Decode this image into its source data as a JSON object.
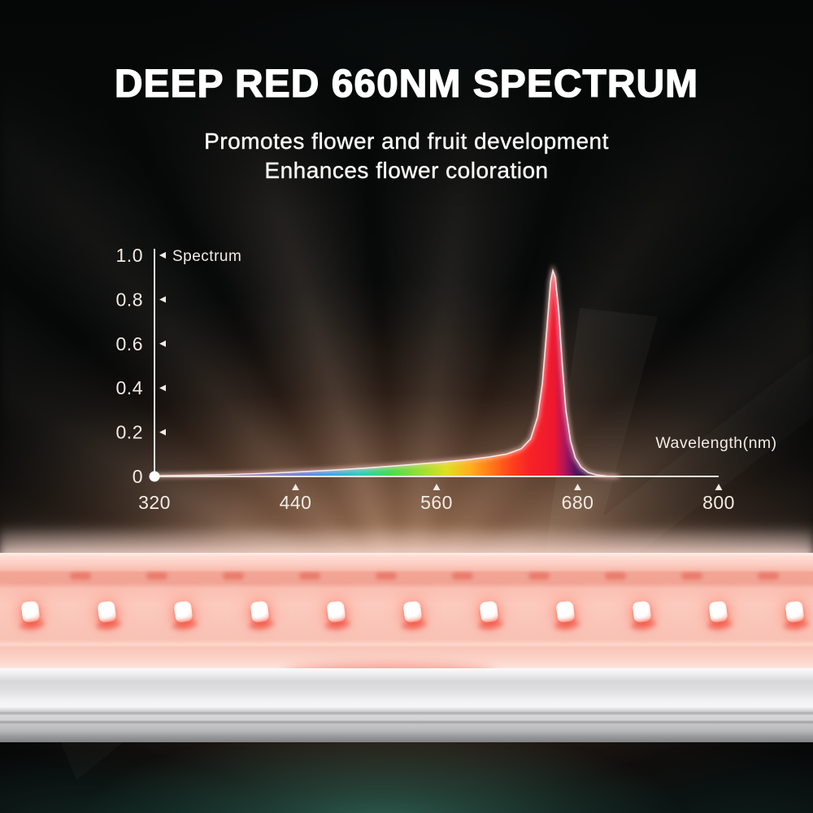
{
  "header": {
    "title": "DEEP RED 660NM SPECTRUM",
    "subtitle_line1": "Promotes flower and fruit development",
    "subtitle_line2": "Enhances flower coloration"
  },
  "chart_data": {
    "type": "area",
    "title": "",
    "xlabel": "Wavelength(nm)",
    "ylabel": "Spectrum",
    "xlim": [
      320,
      800
    ],
    "ylim": [
      0,
      1.0
    ],
    "grid": false,
    "legend_position": "none",
    "x_ticks": [
      320,
      440,
      560,
      680,
      800
    ],
    "y_ticks": [
      0,
      0.2,
      0.4,
      0.6,
      0.8,
      1.0
    ],
    "y_tick_labels": [
      "0",
      "0.2",
      "0.4",
      "0.6",
      "0.8",
      "1.0"
    ],
    "peak": {
      "wavelength_nm": 660,
      "intensity": 0.93
    },
    "series": [
      {
        "name": "Spectrum",
        "points": [
          [
            320,
            0.003
          ],
          [
            350,
            0.005
          ],
          [
            380,
            0.008
          ],
          [
            410,
            0.013
          ],
          [
            440,
            0.02
          ],
          [
            470,
            0.028
          ],
          [
            500,
            0.038
          ],
          [
            530,
            0.05
          ],
          [
            560,
            0.063
          ],
          [
            585,
            0.075
          ],
          [
            605,
            0.088
          ],
          [
            620,
            0.102
          ],
          [
            632,
            0.125
          ],
          [
            640,
            0.17
          ],
          [
            646,
            0.27
          ],
          [
            650,
            0.42
          ],
          [
            654,
            0.68
          ],
          [
            657,
            0.88
          ],
          [
            659,
            0.93
          ],
          [
            661,
            0.9
          ],
          [
            664,
            0.74
          ],
          [
            667,
            0.5
          ],
          [
            670,
            0.3
          ],
          [
            674,
            0.16
          ],
          [
            678,
            0.085
          ],
          [
            683,
            0.042
          ],
          [
            689,
            0.018
          ],
          [
            696,
            0.007
          ],
          [
            705,
            0.002
          ],
          [
            715,
            0.0
          ]
        ]
      }
    ],
    "color_stops": [
      {
        "nm": 320,
        "c": "#8a5ad0",
        "o": 0.0
      },
      {
        "nm": 365,
        "c": "#7a55d2",
        "o": 0.45
      },
      {
        "nm": 405,
        "c": "#5f5ae2",
        "o": 0.7
      },
      {
        "nm": 440,
        "c": "#3e6ee8",
        "o": 0.9
      },
      {
        "nm": 468,
        "c": "#2f9ce8",
        "o": 1.0
      },
      {
        "nm": 494,
        "c": "#2accc0",
        "o": 1.0
      },
      {
        "nm": 520,
        "c": "#44dc50",
        "o": 1.0
      },
      {
        "nm": 546,
        "c": "#96e032",
        "o": 1.0
      },
      {
        "nm": 568,
        "c": "#dfe020",
        "o": 1.0
      },
      {
        "nm": 588,
        "c": "#ffb01e",
        "o": 1.0
      },
      {
        "nm": 606,
        "c": "#ff7a18",
        "o": 1.0
      },
      {
        "nm": 624,
        "c": "#ff401c",
        "o": 1.0
      },
      {
        "nm": 640,
        "c": "#f62226",
        "o": 1.0
      },
      {
        "nm": 660,
        "c": "#ee1830",
        "o": 1.0
      },
      {
        "nm": 669,
        "c": "#b0145c",
        "o": 1.0
      },
      {
        "nm": 678,
        "c": "#55125f",
        "o": 1.0
      },
      {
        "nm": 688,
        "c": "#2e1150",
        "o": 0.75
      },
      {
        "nm": 698,
        "c": "#241040",
        "o": 0.35
      },
      {
        "nm": 710,
        "c": "#241040",
        "o": 0.0
      }
    ]
  },
  "fixture": {
    "led_count": 11,
    "reflection_dot_count": 10,
    "led_color": "#ffffff",
    "led_glow_color": "#ff4f3f",
    "bar_color": "#fccabe",
    "heatsink_color": "#d2d2d4"
  },
  "colors": {
    "accent_red": "#ee1830",
    "warm_glow": "#e09464",
    "teal_glow": "#3e9680",
    "text": "#ffffff",
    "chart_text": "#f3ebe3",
    "axis": "#ece4dc"
  }
}
